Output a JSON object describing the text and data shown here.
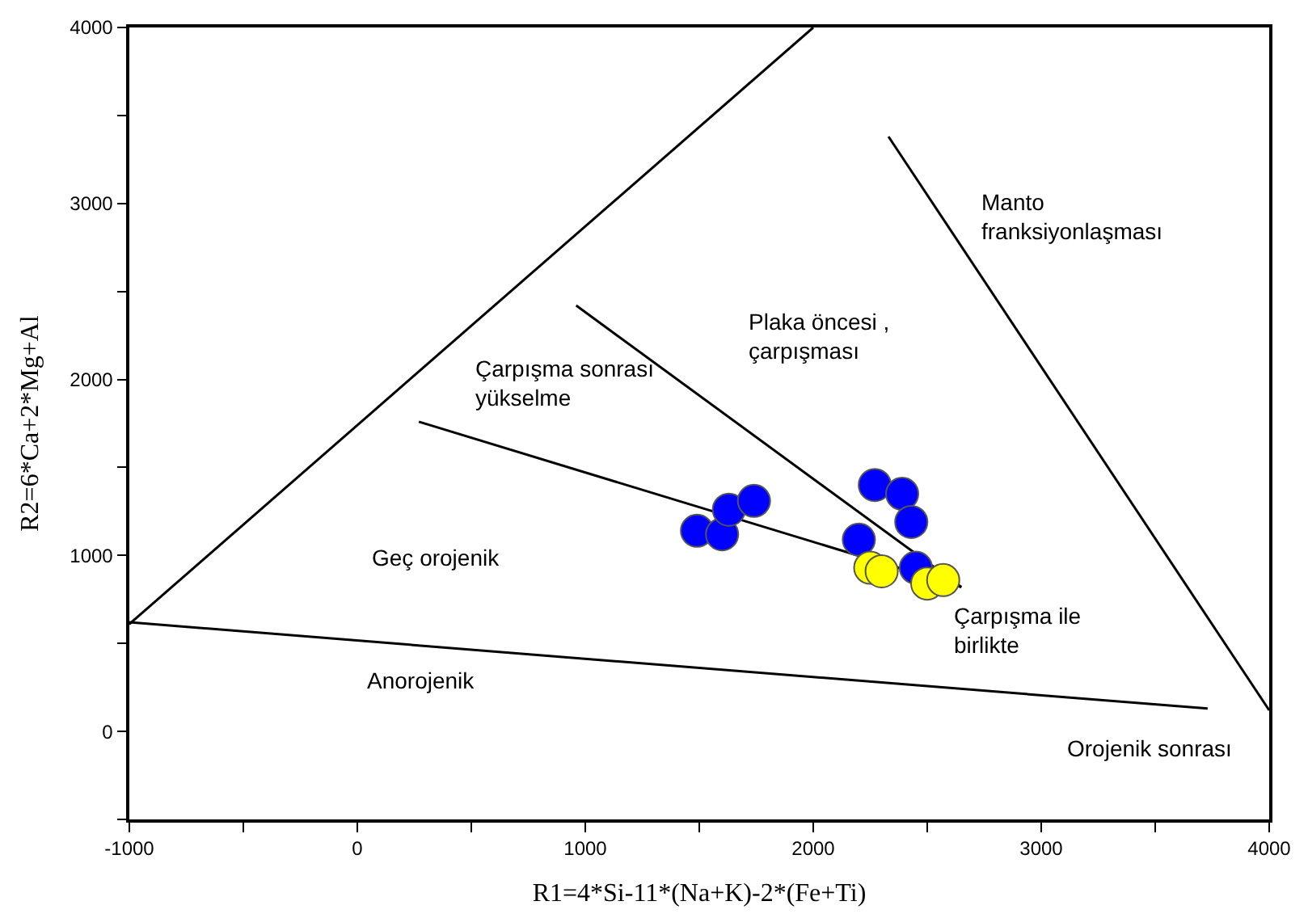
{
  "chart_data": {
    "type": "scatter",
    "xlabel": "R1=4*Si-11*(Na+K)-2*(Fe+Ti)",
    "ylabel": "R2=6*Ca+2*Mg+Al",
    "xlim": [
      -1000,
      4000
    ],
    "ylim": [
      -500,
      4000
    ],
    "xticks": [
      -1000,
      {
        "value": -500,
        "label": null
      },
      0,
      {
        "value": 500,
        "label": null
      },
      1000,
      {
        "value": 1500,
        "label": null
      },
      2000,
      {
        "value": 2500,
        "label": null
      },
      3000,
      {
        "value": 3500,
        "label": null
      },
      4000
    ],
    "yticks": [
      {
        "value": -500,
        "label": null
      },
      0,
      {
        "value": 500,
        "label": null
      },
      1000,
      {
        "value": 1500,
        "label": null
      },
      2000,
      {
        "value": 2500,
        "label": null
      },
      3000,
      {
        "value": 3500,
        "label": null
      },
      4000
    ],
    "series": [
      {
        "type": "line",
        "marker": "none",
        "color": "#000000",
        "x": [
          -1000,
          2000
        ],
        "values": [
          610,
          4000
        ]
      },
      {
        "type": "line",
        "marker": "none",
        "color": "#000000",
        "x": [
          -1000,
          3730
        ],
        "values": [
          620,
          130
        ]
      },
      {
        "type": "line",
        "marker": "none",
        "color": "#000000",
        "x": [
          2330,
          4000
        ],
        "values": [
          3380,
          120
        ]
      },
      {
        "type": "line",
        "marker": "none",
        "color": "#000000",
        "x": [
          270,
          2650
        ],
        "values": [
          1760,
          820
        ]
      },
      {
        "type": "line",
        "marker": "none",
        "color": "#000000",
        "x": [
          960,
          2650
        ],
        "values": [
          2420,
          820
        ]
      },
      {
        "marker": "circle",
        "color": "#0000ff",
        "x": [
          1490,
          1600,
          1630,
          1740,
          2200,
          2270,
          2390,
          2430,
          2450
        ],
        "values": [
          1140,
          1120,
          1260,
          1310,
          1090,
          1400,
          1350,
          1190,
          930
        ]
      },
      {
        "marker": "circle",
        "color": "#ffff00",
        "x": [
          2250,
          2300,
          2500,
          2570
        ],
        "values": [
          930,
          910,
          840,
          860
        ]
      }
    ],
    "annotations": [
      "Manto\nfranksiyonlaşması",
      "Plaka öncesi ,\nçarpışması",
      "Çarpışma sonrası\nyükselme",
      "Geç orojenik",
      "Anorojenik",
      "Çarpışma ile\nbirlikte",
      "Orojenik sonrası"
    ]
  }
}
